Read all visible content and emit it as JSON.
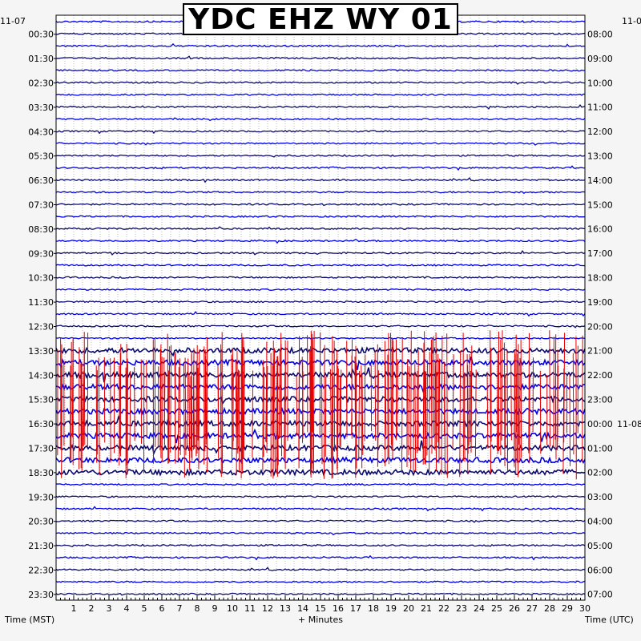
{
  "title": "YDC EHZ WY 01",
  "left_date": "11-07",
  "right_date": "11-0",
  "right_date_2": "11-08",
  "xlabel": "+ Minutes",
  "left_axis_label": "Time (MST)",
  "right_axis_label": "Time (UTC)",
  "colors": {
    "dark": "#0a0a6e",
    "blue": "#0000e6",
    "red": "#e60000",
    "background": "#f5f5f5",
    "grid": "#8a8a8a"
  },
  "chart_data": {
    "type": "line",
    "title": "YDC EHZ WY 01",
    "xlabel": "+ Minutes",
    "xlim": [
      0,
      30
    ],
    "x_ticks": [
      "1",
      "2",
      "3",
      "4",
      "5",
      "6",
      "7",
      "8",
      "9",
      "10",
      "11",
      "12",
      "13",
      "14",
      "15",
      "16",
      "17",
      "18",
      "19",
      "20",
      "21",
      "22",
      "23",
      "24",
      "25",
      "26",
      "27",
      "28",
      "29",
      "30"
    ],
    "left_ticks": [
      "00:30",
      "01:30",
      "02:30",
      "03:30",
      "04:30",
      "05:30",
      "06:30",
      "07:30",
      "08:30",
      "09:30",
      "10:30",
      "11:30",
      "12:30",
      "13:30",
      "14:30",
      "15:30",
      "16:30",
      "17:30",
      "18:30",
      "19:30",
      "20:30",
      "21:30",
      "22:30",
      "23:30"
    ],
    "right_ticks": [
      "08:00",
      "09:00",
      "10:00",
      "11:00",
      "12:00",
      "13:00",
      "14:00",
      "15:00",
      "16:00",
      "17:00",
      "18:00",
      "19:00",
      "20:00",
      "21:00",
      "22:00",
      "23:00",
      "00:00",
      "01:00",
      "02:00",
      "03:00",
      "04:00",
      "05:00",
      "06:00",
      "07:00"
    ],
    "trace_count": 48,
    "trace_minutes": 30,
    "trace_colors": [
      "dark",
      "blue"
    ],
    "clipped_color": "red",
    "noisy_traces": [
      27,
      28,
      29,
      30,
      31,
      32,
      33,
      34,
      35,
      36,
      37
    ],
    "grid": true
  }
}
